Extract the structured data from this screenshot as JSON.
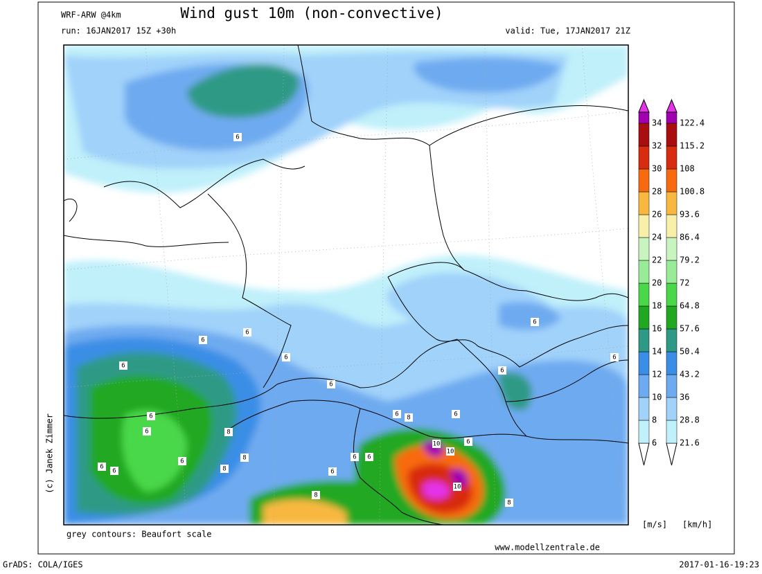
{
  "header": {
    "model": "WRF-ARW @4km",
    "title": "Wind gust 10m (non-convective)",
    "run": "run: 16JAN2017 15Z +30h",
    "valid": "valid: Tue, 17JAN2017 21Z"
  },
  "map": {
    "credit": "(c) Janek Zimmer",
    "note": "grey contours: Beaufort scale",
    "website": "www.modellzentrale.de",
    "contour_labels": [
      6,
      6,
      6,
      6,
      6,
      6,
      6,
      6,
      6,
      6,
      6,
      6,
      6,
      6,
      6,
      8,
      8,
      6,
      6,
      6,
      6,
      6,
      8,
      8,
      10,
      10,
      10,
      8,
      8
    ]
  },
  "legend": {
    "unit_ms": "[m/s]",
    "unit_kmh": "[km/h]",
    "ms": [
      6,
      8,
      10,
      12,
      14,
      16,
      18,
      20,
      22,
      24,
      26,
      28,
      30,
      32,
      34
    ],
    "kmh": [
      21.6,
      28.8,
      36,
      43.2,
      50.4,
      57.6,
      64.8,
      72,
      79.2,
      86.4,
      93.6,
      100.8,
      108,
      115.2,
      122.4
    ],
    "colors": [
      "#c0f0fa",
      "#a0d2fa",
      "#6eaaf0",
      "#3a8ee6",
      "#2e9a86",
      "#20a820",
      "#4ad84a",
      "#98ec98",
      "#c8f4c0",
      "#f8f0a8",
      "#f8b840",
      "#f86a10",
      "#d82c10",
      "#a80e10",
      "#a000b0",
      "#e432e8",
      "#f0a8f0"
    ]
  },
  "footer": {
    "left": "GrADS: COLA/IGES",
    "right": "2017-01-16-19:23"
  }
}
